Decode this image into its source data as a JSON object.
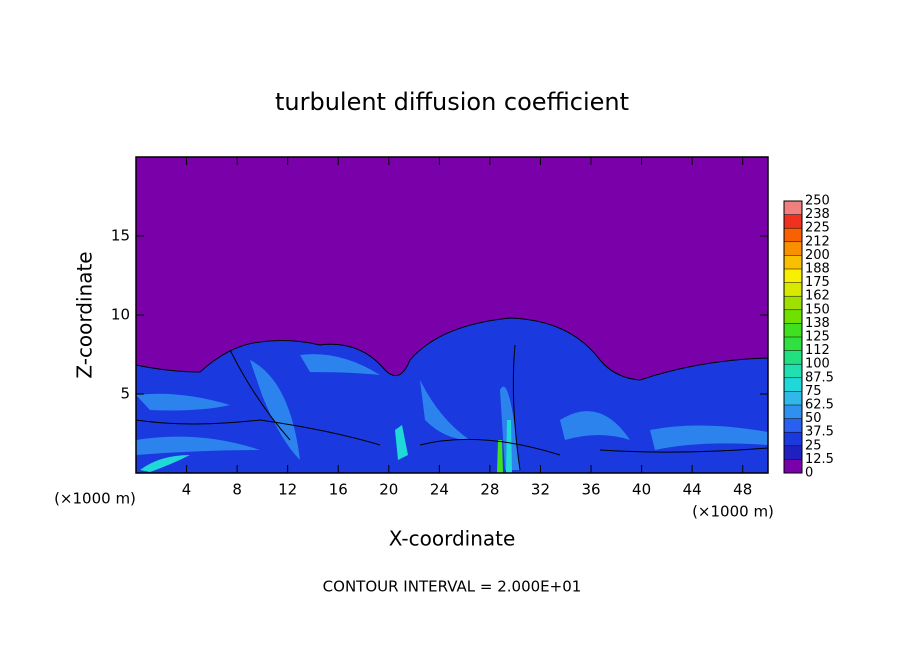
{
  "chart_data": {
    "type": "contour",
    "title": "turbulent diffusion coefficient",
    "x_label": "X-coordinate",
    "y_label": "Z-coordinate",
    "unit_label": "(×1000 m)",
    "footer": "CONTOUR INTERVAL = 2.000E+01",
    "xlim": [
      0,
      50
    ],
    "xticks": [
      4,
      8,
      12,
      16,
      20,
      24,
      28,
      32,
      36,
      40,
      44,
      48
    ],
    "ylim": [
      0,
      20
    ],
    "yticks": [
      5,
      10,
      15
    ],
    "colorbar": {
      "levels": [
        0,
        12.5,
        25,
        37.5,
        50,
        62.5,
        75,
        87.5,
        100,
        {
          "value": 112.5,
          "label": "112"
        },
        125,
        {
          "value": 137.5,
          "label": "138"
        },
        150,
        {
          "value": 162.5,
          "label": "162"
        },
        175,
        {
          "value": 187.5,
          "label": "188"
        },
        200,
        {
          "value": 212.5,
          "label": "212"
        },
        225,
        {
          "value": 237.5,
          "label": "238"
        },
        250
      ],
      "colors": [
        "#7a00aa",
        "#2020c0",
        "#1a3adf",
        "#2a60f0",
        "#3090f0",
        "#30b8e8",
        "#20d8d8",
        "#20e0b0",
        "#20e080",
        "#30e040",
        "#40e020",
        "#70e000",
        "#a0e000",
        "#d8e800",
        "#f8f000",
        "#f8c000",
        "#f89000",
        "#f86000",
        "#f03020",
        "#f08080"
      ]
    }
  }
}
